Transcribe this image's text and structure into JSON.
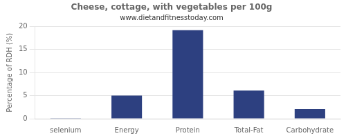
{
  "chart_data": {
    "type": "bar",
    "title": "Cheese, cottage, with vegetables per 100g",
    "subtitle": "www.dietandfitnesstoday.com",
    "ylabel": "Percentage of RDH (%)",
    "categories": [
      "selenium",
      "Energy",
      "Protein",
      "Total-Fat",
      "Carbohydrate"
    ],
    "values": [
      0.05,
      5.0,
      19.2,
      6.1,
      2.1
    ],
    "color": "#2d4080",
    "ylim": [
      0,
      20
    ],
    "yticks": [
      0,
      5,
      10,
      15,
      20
    ],
    "grid": true
  }
}
